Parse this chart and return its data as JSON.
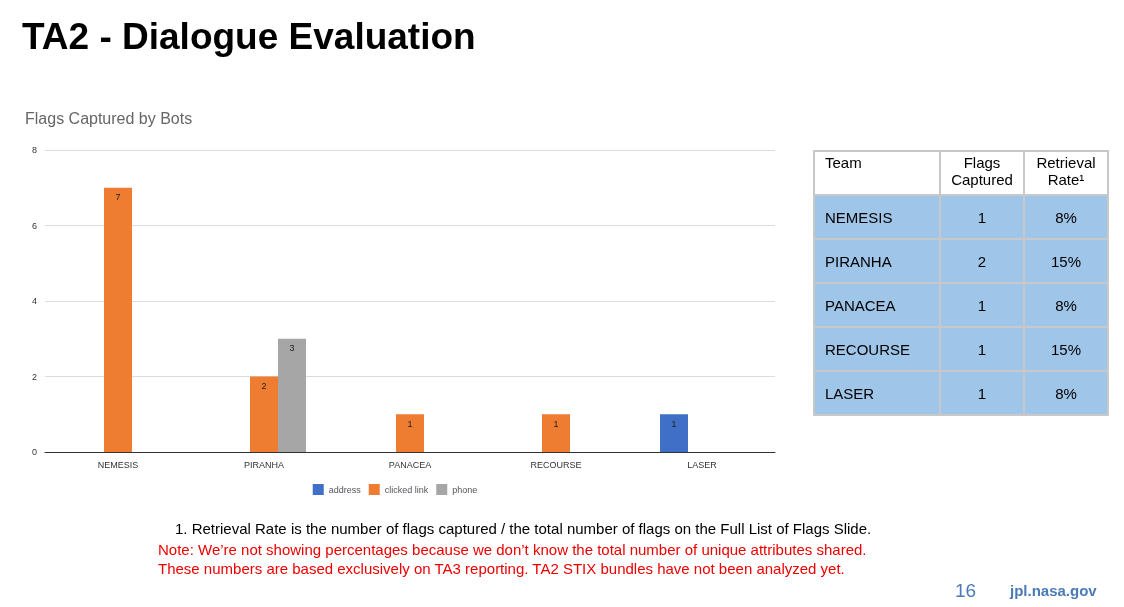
{
  "chart_data": [
    {
      "type": "bar",
      "title": "TA2 - Dialogue Evaluation",
      "subtitle": "Flags Captured by Bots",
      "categories": [
        "NEMESIS",
        "PIRANHA",
        "PANACEA",
        "RECOURSE",
        "LASER"
      ],
      "series": [
        {
          "name": "address",
          "color": "#3f6fc6",
          "values": [
            null,
            null,
            null,
            null,
            1
          ]
        },
        {
          "name": "clicked link",
          "color": "#ef7d31",
          "values": [
            7,
            2,
            1,
            1,
            null
          ]
        },
        {
          "name": "phone",
          "color": "#a6a6a6",
          "values": [
            null,
            3,
            null,
            null,
            null
          ]
        }
      ],
      "ylim": [
        0,
        8
      ],
      "yticks": [
        0,
        2,
        4,
        6,
        8
      ],
      "grid": "y",
      "legend": "bottom",
      "data_labels": true,
      "annotations": [
        "1.      Retrieval Rate is the number of flags captured / the total number of flags on the Full List of Flags Slide.",
        "Note: We’re not showing percentages because we don’t know the total number of unique attributes shared.",
        "These numbers are based exclusively on TA3 reporting. TA2 STIX bundles have not been analyzed yet.",
        "16",
        "jpl.nasa.gov"
      ]
    },
    {
      "type": "other",
      "xlabel": "Team",
      "categories": [
        "NEMESIS",
        "PIRANHA",
        "PANACEA",
        "RECOURSE",
        "LASER"
      ],
      "series": [
        {
          "name": "Flags Captured",
          "values": [
            1,
            2,
            1,
            1,
            1
          ],
          "value_labels": [
            "1",
            "2",
            "1",
            "1",
            "1"
          ]
        },
        {
          "name": "Retrieval Rate¹",
          "values": [
            8,
            15,
            8,
            15,
            8
          ],
          "value_labels": [
            "8%",
            "15%",
            "8%",
            "15%",
            "8%"
          ]
        }
      ]
    }
  ]
}
